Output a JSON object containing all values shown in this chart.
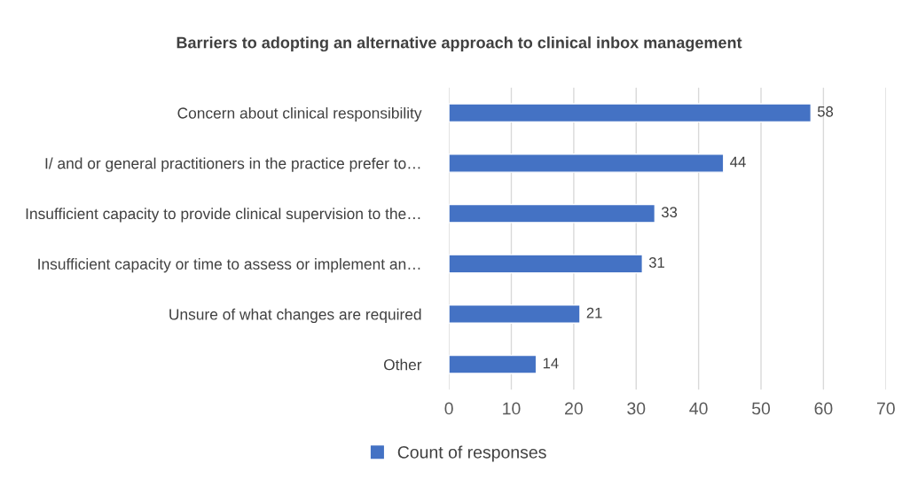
{
  "chart_data": {
    "type": "bar",
    "orientation": "horizontal",
    "title": "Barriers to adopting an alternative approach to clinical inbox management",
    "categories": [
      "Concern about clinical responsibility",
      "I/ and or general practitioners in the practice prefer to…",
      "Insufficient capacity to provide clinical supervision to the…",
      "Insufficient capacity or time to assess or implement an…",
      "Unsure of what changes are required",
      "Other"
    ],
    "series": [
      {
        "name": "Count of responses",
        "color": "#4472c4",
        "values": [
          58,
          44,
          33,
          31,
          21,
          14
        ]
      }
    ],
    "xlim": [
      0,
      70
    ],
    "xticks": [
      0,
      10,
      20,
      30,
      40,
      50,
      60,
      70
    ],
    "grid": "x",
    "legend": "bottom",
    "data_labels": true
  }
}
